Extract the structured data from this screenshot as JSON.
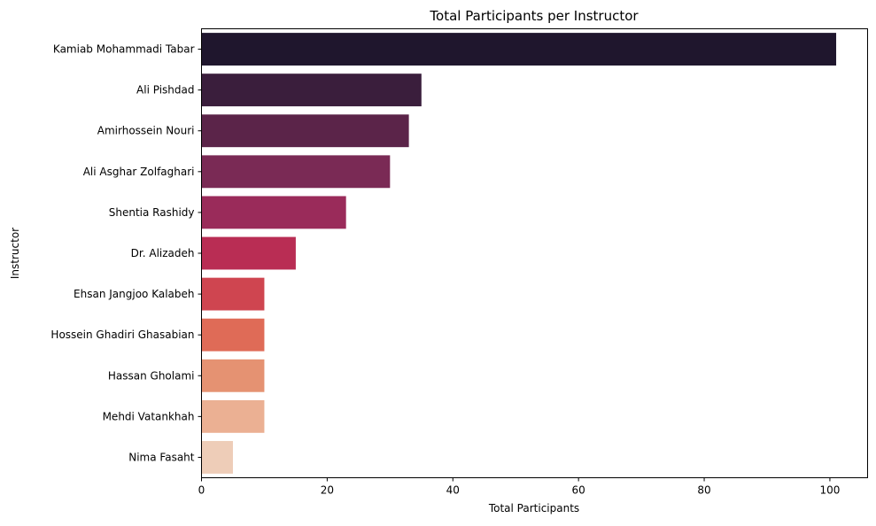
{
  "chart_data": {
    "type": "bar",
    "orientation": "horizontal",
    "title": "Total Participants per Instructor",
    "xlabel": "Total Participants",
    "ylabel": "Instructor",
    "xlim": [
      0,
      106
    ],
    "xticks": [
      0,
      20,
      40,
      60,
      80,
      100
    ],
    "grid": false,
    "categories": [
      "Kamiab Mohammadi Tabar",
      "Ali Pishdad",
      "Amirhossein Nouri",
      "Ali Asghar Zolfaghari",
      "Shentia Rashidy",
      "Dr. Alizadeh",
      "Ehsan Jangjoo Kalabeh",
      "Hossein Ghadiri Ghasabian",
      "Hassan Gholami",
      "Mehdi Vatankhah",
      "Nima Fasaht"
    ],
    "values": [
      101,
      35,
      33,
      30,
      23,
      15,
      10,
      10,
      10,
      10,
      5
    ],
    "colors": [
      "#1f162d",
      "#3a1e3c",
      "#5b2449",
      "#7a2a55",
      "#9a2b5a",
      "#b92d54",
      "#cf4550",
      "#df6b57",
      "#e59272",
      "#ebb093",
      "#eecdb8"
    ]
  }
}
